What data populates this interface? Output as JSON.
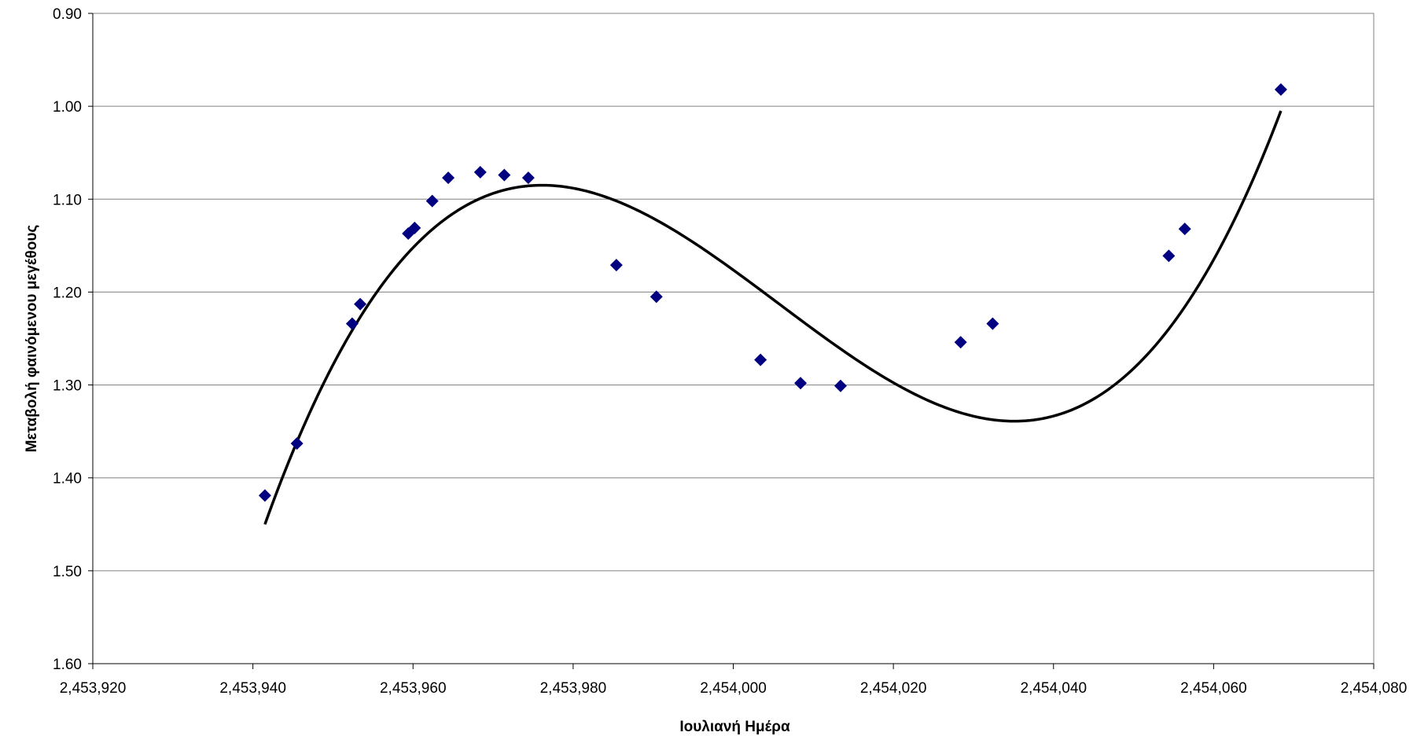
{
  "chart_data": {
    "type": "scatter",
    "title": "",
    "xlabel": "Ιουλιανή Ημέρα",
    "ylabel": "Μεταβολή φαινόμενου μεγέθους",
    "xlim": [
      2453920,
      2454080
    ],
    "ylim": [
      0.9,
      1.6
    ],
    "y_inverted": true,
    "grid": "horizontal",
    "legend": "none",
    "x_ticks": [
      2453920,
      2453940,
      2453960,
      2453980,
      2454000,
      2454020,
      2454040,
      2454060,
      2454080
    ],
    "x_tick_labels": [
      "2,453,920",
      "2,453,940",
      "2,453,960",
      "2,453,980",
      "2,454,000",
      "2,454,020",
      "2,454,040",
      "2,454,060",
      "2,454,080"
    ],
    "y_ticks": [
      0.9,
      1.0,
      1.1,
      1.2,
      1.3,
      1.4,
      1.5,
      1.6
    ],
    "y_tick_labels": [
      "0.90",
      "1.00",
      "1.10",
      "1.20",
      "1.30",
      "1.40",
      "1.50",
      "1.60"
    ],
    "colors": {
      "points": "#000080",
      "trend": "#000000",
      "grid": "#808080"
    },
    "series": [
      {
        "marker": "diamond",
        "x": [
          2453941.5,
          2453945.5,
          2453952.4,
          2453953.4,
          2453959.4,
          2453960.2,
          2453962.4,
          2453964.4,
          2453968.4,
          2453971.4,
          2453974.4,
          2453985.4,
          2453990.4,
          2454003.4,
          2454008.4,
          2454013.4,
          2454028.4,
          2454032.4,
          2454054.4,
          2454056.4,
          2454068.4
        ],
        "y": [
          1.419,
          1.363,
          1.234,
          1.213,
          1.137,
          1.131,
          1.102,
          1.077,
          1.071,
          1.074,
          1.077,
          1.171,
          1.205,
          1.273,
          1.298,
          1.301,
          1.254,
          1.234,
          1.161,
          1.132,
          0.982
        ]
      }
    ],
    "trendline": {
      "type": "polynomial",
      "x_range": [
        2453941.5,
        2454068.4
      ],
      "key_points": [
        {
          "x": 2453941.5,
          "y": 1.45
        },
        {
          "x": 2453969.0,
          "y": 1.097
        },
        {
          "x": 2454020.5,
          "y": 1.3
        },
        {
          "x": 2454068.4,
          "y": 1.005
        }
      ]
    }
  }
}
